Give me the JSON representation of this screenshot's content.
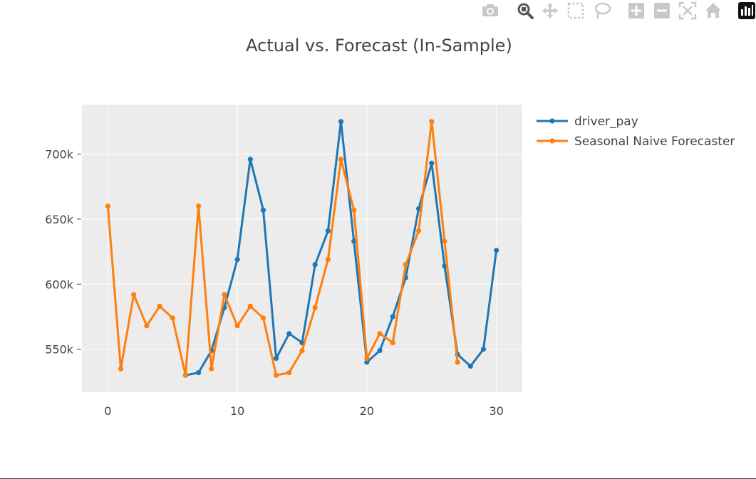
{
  "toolbar": {
    "icons": [
      "camera-icon",
      "zoom-icon",
      "pan-icon",
      "box-select-icon",
      "lasso-select-icon",
      "zoom-in-icon",
      "zoom-out-icon",
      "autoscale-icon",
      "reset-axes-icon",
      "plotly-logo-icon"
    ]
  },
  "colors": {
    "plot_bg": "#ececec",
    "grid": "#ffffff",
    "text": "#444444",
    "series_0": "#1f77b4",
    "series_1": "#ff7f0e",
    "toolbar_icon": "#c8c8c8",
    "toolbar_active": "#555555"
  },
  "chart_data": {
    "type": "line",
    "title": "Actual vs. Forecast (In-Sample)",
    "xlabel": "",
    "ylabel": "",
    "xlim": [
      -2,
      32
    ],
    "ylim": [
      517000,
      738000
    ],
    "x_ticks": [
      0,
      10,
      20,
      30
    ],
    "x_tick_labels": [
      "0",
      "10",
      "20",
      "30"
    ],
    "y_ticks": [
      550000,
      600000,
      650000,
      700000
    ],
    "y_tick_labels": [
      "550k",
      "600k",
      "650k",
      "700k"
    ],
    "grid": true,
    "legend_position": "right",
    "series": [
      {
        "name": "driver_pay",
        "x": [
          6,
          7,
          8,
          9,
          10,
          11,
          12,
          13,
          14,
          15,
          16,
          17,
          18,
          19,
          20,
          21,
          22,
          23,
          24,
          25,
          26,
          27,
          28,
          29,
          30
        ],
        "values": [
          530000,
          532000,
          549000,
          582000,
          619000,
          696000,
          657000,
          543000,
          562000,
          555000,
          615000,
          641000,
          725000,
          633000,
          540000,
          549000,
          575000,
          605000,
          658000,
          693000,
          614000,
          546000,
          537000,
          550000,
          626000
        ]
      },
      {
        "name": "Seasonal Naive Forecaster",
        "x": [
          0,
          1,
          2,
          3,
          4,
          5,
          6,
          7,
          8,
          9,
          10,
          11,
          12,
          13,
          14,
          15,
          16,
          17,
          18,
          19,
          20,
          21,
          22,
          23,
          24,
          25,
          26,
          27
        ],
        "values": [
          660000,
          535000,
          592000,
          568000,
          583000,
          574000,
          530000,
          660000,
          535000,
          592000,
          568000,
          583000,
          574000,
          530000,
          532000,
          549000,
          582000,
          619000,
          696000,
          657000,
          543000,
          562000,
          555000,
          615000,
          641000,
          725000,
          633000,
          540000
        ]
      }
    ]
  }
}
